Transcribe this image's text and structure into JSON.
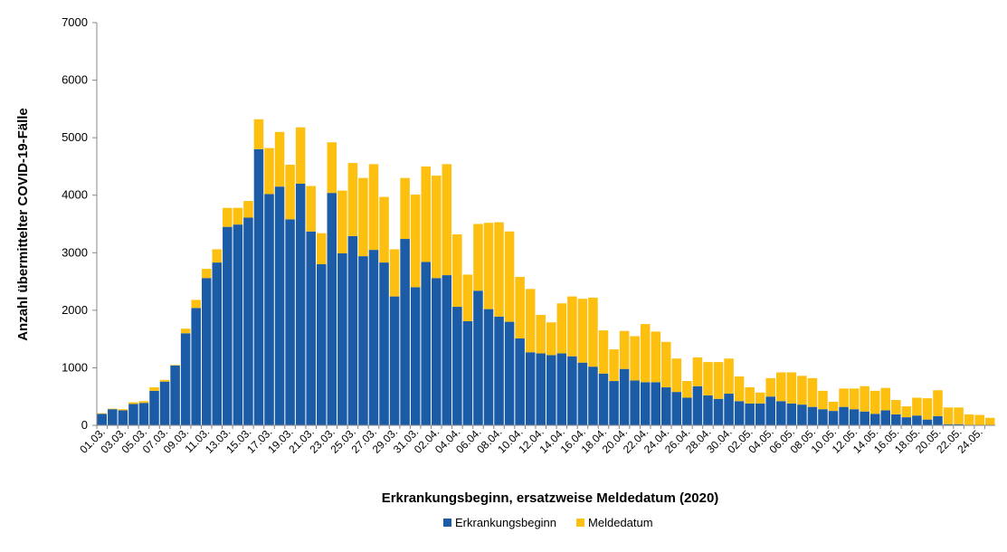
{
  "chart_data": {
    "type": "stacked_bar",
    "x_label": "Erkrankungsbeginn, ersatzweise Meldedatum (2020)",
    "y_label": "Anzahl übermittelter COVID-19-Fälle",
    "categories": [
      "01.03.",
      null,
      "03.03.",
      null,
      "05.03.",
      null,
      "07.03.",
      null,
      "09.03.",
      null,
      "11.03.",
      null,
      "13.03.",
      null,
      "15.03.",
      null,
      "17.03.",
      null,
      "19.03.",
      null,
      "21.03.",
      null,
      "23.03.",
      null,
      "25.03.",
      null,
      "27.03.",
      null,
      "29.03.",
      null,
      "31.03.",
      null,
      "02.04.",
      null,
      "04.04.",
      null,
      "06.04.",
      null,
      "08.04.",
      null,
      "10.04.",
      null,
      "12.04.",
      null,
      "14.04.",
      null,
      "16.04.",
      null,
      "18.04.",
      null,
      "20.04.",
      null,
      "22.04.",
      null,
      "24.04.",
      null,
      "26.04.",
      null,
      "28.04.",
      null,
      "30.04.",
      null,
      "02.05.",
      null,
      "04.05.",
      null,
      "06.05.",
      null,
      "08.05.",
      null,
      "10.05.",
      null,
      "12.05.",
      null,
      "14.05.",
      null,
      "16.05.",
      null,
      "18.05.",
      null,
      "20.05.",
      null,
      "22.05.",
      null,
      "24.05.",
      null
    ],
    "series": [
      {
        "name": "Erkrankungsbeginn",
        "color": "#1c5ba6",
        "values": [
          200,
          280,
          260,
          370,
          390,
          600,
          760,
          1040,
          1600,
          2040,
          2560,
          2830,
          3450,
          3490,
          3610,
          4800,
          4020,
          4150,
          3580,
          4200,
          3370,
          2800,
          4040,
          2990,
          3290,
          2940,
          3050,
          2830,
          2240,
          3240,
          2400,
          2840,
          2560,
          2610,
          2060,
          1810,
          2340,
          2020,
          1890,
          1800,
          1510,
          1270,
          1250,
          1220,
          1250,
          1200,
          1090,
          1020,
          900,
          770,
          980,
          780,
          750,
          750,
          660,
          580,
          480,
          680,
          520,
          460,
          550,
          420,
          380,
          380,
          500,
          420,
          380,
          360,
          320,
          280,
          250,
          320,
          280,
          240,
          200,
          260,
          190,
          140,
          170,
          100,
          160,
          20,
          20,
          10,
          5,
          0
        ]
      },
      {
        "name": "Meldedatum",
        "color": "#fdc010",
        "values": [
          10,
          10,
          20,
          30,
          30,
          60,
          30,
          10,
          80,
          140,
          160,
          230,
          330,
          290,
          290,
          520,
          800,
          950,
          950,
          980,
          790,
          540,
          880,
          1090,
          1270,
          1360,
          1490,
          1140,
          820,
          1060,
          1610,
          1660,
          1780,
          1930,
          1260,
          810,
          1160,
          1500,
          1640,
          1570,
          1070,
          1100,
          670,
          570,
          870,
          1040,
          1110,
          1200,
          750,
          550,
          660,
          770,
          1010,
          880,
          790,
          580,
          290,
          500,
          580,
          640,
          610,
          430,
          280,
          190,
          320,
          500,
          540,
          500,
          500,
          320,
          160,
          320,
          360,
          440,
          400,
          390,
          250,
          190,
          310,
          370,
          450,
          290,
          290,
          180,
          175,
          130
        ]
      }
    ],
    "ylim": [
      0,
      7000
    ],
    "yticks": [
      0,
      1000,
      2000,
      3000,
      4000,
      5000,
      6000,
      7000
    ],
    "grid": false,
    "legend": "bottom"
  }
}
